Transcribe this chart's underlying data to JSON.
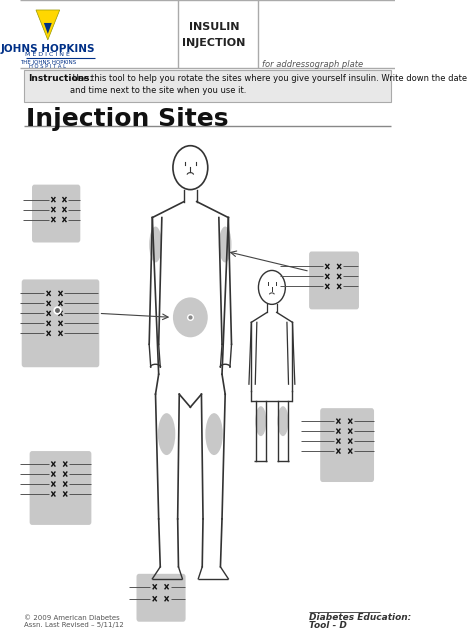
{
  "title": "Injection Sites",
  "instructions_bold": "Instructions:",
  "instructions_text": " Use this tool to help you rotate the sites where you give yourself insulin. Write down the date\nand time next to the site when you use it.",
  "header_label1": "INSULIN",
  "header_label2": "INJECTION",
  "header_label3": "for addressograph plate",
  "footer_left1": "© 2009 American Diabetes",
  "footer_left2": "Assn. Last Revised – 5/11/12",
  "footer_right1": "Diabetes Education:",
  "footer_right2": "Tool - D",
  "bg_color": "#ffffff",
  "instruction_bg": "#e8e8e8",
  "site_box_color": "#c8c8c8",
  "body_outline_color": "#333333",
  "line_color": "#555555",
  "x_color": "#111111",
  "jh_blue": "#003087",
  "jh_gold": "#FFD700"
}
